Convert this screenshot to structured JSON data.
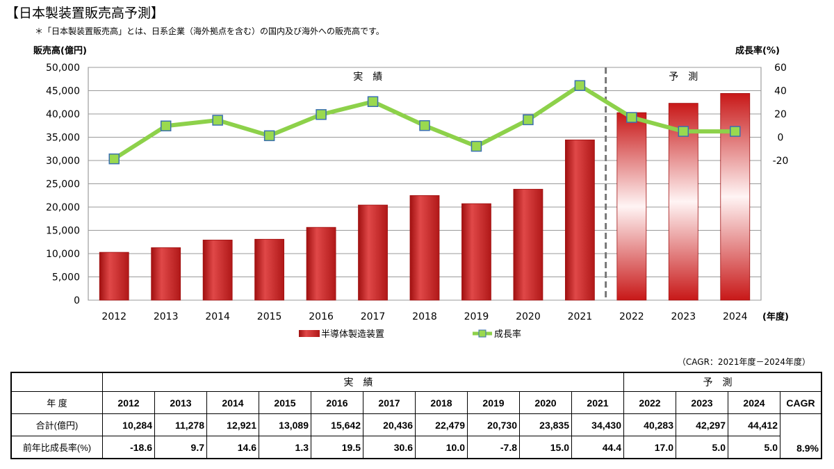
{
  "title": "【日本製装置販売高予測】",
  "note": "＊「日本製装置販売高」とは、日系企業（海外拠点を含む）の国内及び海外への販売高です。",
  "chart_data": {
    "type": "bar+line",
    "categories": [
      "2012",
      "2013",
      "2014",
      "2015",
      "2016",
      "2017",
      "2018",
      "2019",
      "2020",
      "2021",
      "2022",
      "2023",
      "2024"
    ],
    "x_unit": "(年度)",
    "series": [
      {
        "name": "半導体製造装置",
        "type": "bar",
        "axis": "left",
        "values": [
          10284,
          11278,
          12921,
          13089,
          15642,
          20436,
          22479,
          20730,
          23835,
          34430,
          40283,
          42297,
          44412
        ],
        "color": "#c81e1e"
      },
      {
        "name": "成長率",
        "type": "line",
        "axis": "right",
        "values": [
          -18.6,
          9.7,
          14.6,
          1.3,
          19.5,
          30.6,
          10.0,
          -7.8,
          15.0,
          44.4,
          17.0,
          5.0,
          5.0
        ],
        "color": "#8dd14a"
      }
    ],
    "ylabel": "販売高(億円)",
    "ylim": [
      0,
      50000
    ],
    "yticks": [
      0,
      5000,
      10000,
      15000,
      20000,
      25000,
      30000,
      35000,
      40000,
      45000,
      50000
    ],
    "ytick_labels": [
      "0",
      "5,000",
      "10,000",
      "15,000",
      "20,000",
      "25,000",
      "30,000",
      "35,000",
      "40,000",
      "45,000",
      "50,000"
    ],
    "y2label": "成長率(%)",
    "y2lim": [
      -140,
      60
    ],
    "y2ticks": [
      -20,
      0,
      20,
      40,
      60
    ],
    "forecast_start": "2022",
    "annotations": {
      "actual": "実　績",
      "forecast": "予　測"
    },
    "grid": true,
    "legend": "bottom"
  },
  "table": {
    "cagr_note": "（CAGR：2021年度－2024年度）",
    "group_actual": "実績",
    "group_forecast": "予測",
    "row_year_label": "年 度",
    "cagr_header": "CAGR",
    "row_total_label": "合計(億円)",
    "row_growth_label": "前年比成長率(%)",
    "totals": [
      "10,284",
      "11,278",
      "12,921",
      "13,089",
      "15,642",
      "20,436",
      "22,479",
      "20,730",
      "23,835",
      "34,430",
      "40,283",
      "42,297",
      "44,412"
    ],
    "growth": [
      "-18.6",
      "9.7",
      "14.6",
      "1.3",
      "19.5",
      "30.6",
      "10.0",
      "-7.8",
      "15.0",
      "44.4",
      "17.0",
      "5.0",
      "5.0"
    ],
    "cagr": "8.9%"
  }
}
